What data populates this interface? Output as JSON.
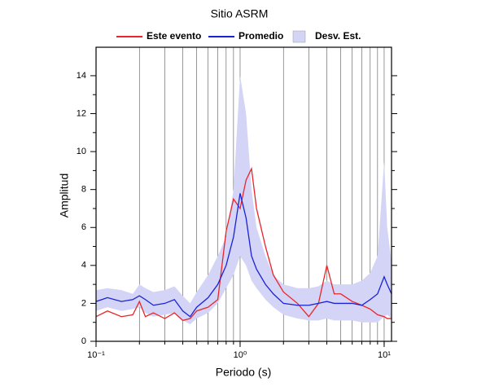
{
  "chart_data": {
    "type": "line",
    "title": "Sitio ASRM",
    "xlabel": "Periodo (s)",
    "ylabel": "Amplitud",
    "log_x": true,
    "grid": true,
    "x": [
      0.1,
      0.12,
      0.15,
      0.18,
      0.2,
      0.22,
      0.25,
      0.3,
      0.35,
      0.4,
      0.45,
      0.5,
      0.6,
      0.7,
      0.8,
      0.9,
      1.0,
      1.1,
      1.2,
      1.3,
      1.5,
      1.7,
      2.0,
      2.5,
      3.0,
      3.5,
      4.0,
      4.5,
      5.0,
      6.0,
      7.0,
      8.0,
      9.0,
      10.0,
      10.5,
      11.25
    ],
    "series": [
      {
        "name": "Este evento",
        "color": "#e8262a",
        "values": [
          1.3,
          1.6,
          1.3,
          1.4,
          2.1,
          1.3,
          1.5,
          1.2,
          1.5,
          1.1,
          1.2,
          1.6,
          1.8,
          2.2,
          5.8,
          7.5,
          7.0,
          8.5,
          9.1,
          7.0,
          5.0,
          3.5,
          2.6,
          2.0,
          1.3,
          2.0,
          4.0,
          2.5,
          2.5,
          2.1,
          1.9,
          1.7,
          1.4,
          1.3,
          1.2,
          1.2
        ]
      },
      {
        "name": "Promedio",
        "color": "#1a22d6",
        "values": [
          2.1,
          2.3,
          2.1,
          2.2,
          2.4,
          2.2,
          1.9,
          2.0,
          2.2,
          1.6,
          1.3,
          1.8,
          2.3,
          3.0,
          4.0,
          5.5,
          7.8,
          6.5,
          4.5,
          3.8,
          3.0,
          2.5,
          2.0,
          1.9,
          1.9,
          2.0,
          2.1,
          2.0,
          2.0,
          2.0,
          1.9,
          2.2,
          2.5,
          3.4,
          3.0,
          2.5
        ]
      },
      {
        "name": "Desv. Est.",
        "color": "#d4d4f6",
        "band": true,
        "lower": [
          1.6,
          1.8,
          1.6,
          1.7,
          1.8,
          1.5,
          1.3,
          1.4,
          1.5,
          1.1,
          0.9,
          1.2,
          1.5,
          2.0,
          2.8,
          3.5,
          4.5,
          4.0,
          3.2,
          2.8,
          2.2,
          1.8,
          1.4,
          1.2,
          1.1,
          1.1,
          1.2,
          1.1,
          1.1,
          1.1,
          1.0,
          1.0,
          1.0,
          1.3,
          1.4,
          1.2
        ],
        "upper": [
          2.7,
          2.8,
          2.7,
          2.5,
          3.0,
          2.8,
          2.6,
          2.7,
          2.9,
          2.4,
          2.0,
          2.6,
          3.5,
          4.5,
          5.5,
          8.0,
          14.0,
          12.0,
          8.0,
          6.0,
          4.5,
          3.5,
          3.0,
          2.8,
          2.8,
          2.9,
          3.2,
          3.0,
          3.0,
          3.0,
          3.2,
          3.6,
          4.5,
          9.5,
          6.0,
          4.2
        ]
      }
    ],
    "xlim": [
      0.1,
      11.25
    ],
    "ylim": [
      0,
      15.5
    ],
    "xticks": [
      {
        "value": 0.1,
        "label": "10⁻¹"
      },
      {
        "value": 1,
        "label": "10⁰"
      },
      {
        "value": 10,
        "label": "10¹"
      }
    ],
    "yticks": [
      0,
      2,
      4,
      6,
      8,
      10,
      12,
      14
    ]
  }
}
